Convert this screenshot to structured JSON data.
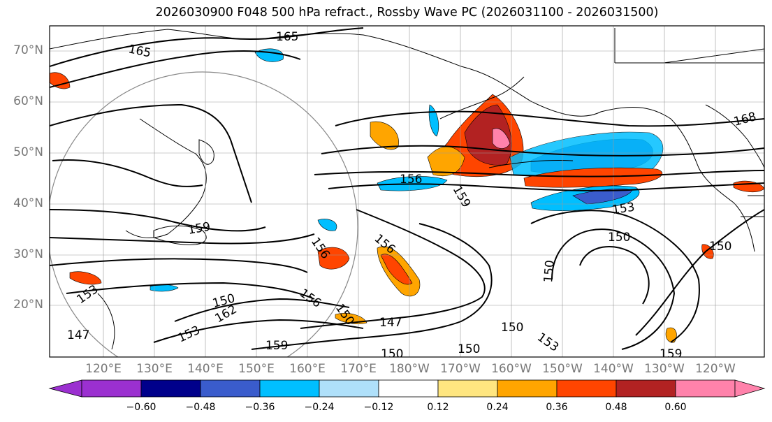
{
  "title": "2026030900 F048 500 hPa refract., Rossby Wave PC (2026031100 - 2026031500)",
  "map": {
    "lat_labels": [
      "70°N",
      "60°N",
      "50°N",
      "40°N",
      "30°N",
      "20°N"
    ],
    "lon_labels": [
      "120°E",
      "130°E",
      "140°E",
      "150°E",
      "160°E",
      "170°E",
      "180°W",
      "170°W",
      "160°W",
      "150°W",
      "140°W",
      "130°W",
      "120°W"
    ],
    "contour_labels": [
      "165",
      "165",
      "168",
      "156",
      "159",
      "153",
      "150",
      "150",
      "150",
      "159",
      "156",
      "156",
      "150",
      "162",
      "147",
      "150",
      "153",
      "156",
      "159",
      "147",
      "150",
      "153",
      "159",
      "150",
      "150",
      "153"
    ]
  },
  "colorbar": {
    "ticks": [
      "−0.60",
      "−0.48",
      "−0.36",
      "−0.24",
      "−0.12",
      "0.12",
      "0.24",
      "0.36",
      "0.48",
      "0.60"
    ],
    "colors": [
      "#9b30d0",
      "#00008b",
      "#3a5ccc",
      "#00bfff",
      "#afe0fa",
      "#ffffff",
      "#ffe680",
      "#ffa500",
      "#ff4500",
      "#b22222",
      "#ff82ab"
    ]
  },
  "colors": {
    "positive": "#ff4500",
    "negative": "#00bfff",
    "contour": "#000000",
    "grid": "#999999"
  }
}
